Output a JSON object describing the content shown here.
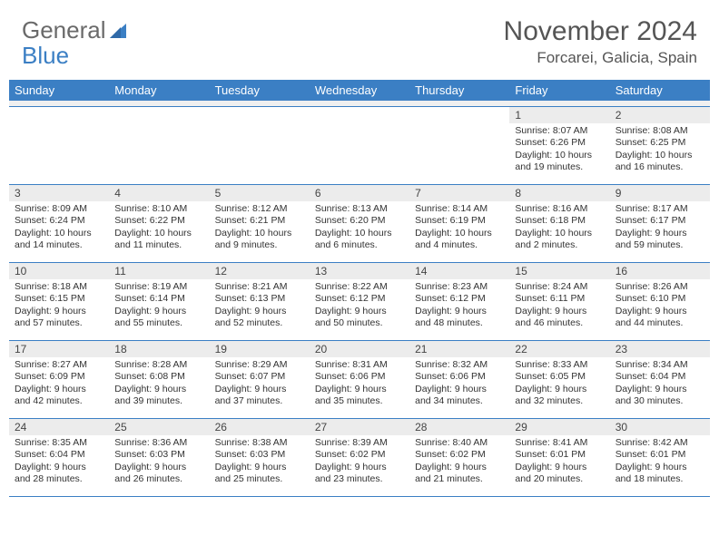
{
  "brand": {
    "word1": "General",
    "word2": "Blue"
  },
  "title": "November 2024",
  "location": "Forcarei, Galicia, Spain",
  "colors": {
    "header_bg": "#3b7fc4",
    "header_text": "#ffffff",
    "daynum_bg": "#ececec",
    "border": "#3b7fc4",
    "title_color": "#555555",
    "body_text": "#333333",
    "logo_gray": "#6a6a6a",
    "logo_blue": "#3b7fc4"
  },
  "day_headers": [
    "Sunday",
    "Monday",
    "Tuesday",
    "Wednesday",
    "Thursday",
    "Friday",
    "Saturday"
  ],
  "weeks": [
    [
      {
        "n": "",
        "sr": "",
        "ss": "",
        "dl": ""
      },
      {
        "n": "",
        "sr": "",
        "ss": "",
        "dl": ""
      },
      {
        "n": "",
        "sr": "",
        "ss": "",
        "dl": ""
      },
      {
        "n": "",
        "sr": "",
        "ss": "",
        "dl": ""
      },
      {
        "n": "",
        "sr": "",
        "ss": "",
        "dl": ""
      },
      {
        "n": "1",
        "sr": "Sunrise: 8:07 AM",
        "ss": "Sunset: 6:26 PM",
        "dl": "Daylight: 10 hours and 19 minutes."
      },
      {
        "n": "2",
        "sr": "Sunrise: 8:08 AM",
        "ss": "Sunset: 6:25 PM",
        "dl": "Daylight: 10 hours and 16 minutes."
      }
    ],
    [
      {
        "n": "3",
        "sr": "Sunrise: 8:09 AM",
        "ss": "Sunset: 6:24 PM",
        "dl": "Daylight: 10 hours and 14 minutes."
      },
      {
        "n": "4",
        "sr": "Sunrise: 8:10 AM",
        "ss": "Sunset: 6:22 PM",
        "dl": "Daylight: 10 hours and 11 minutes."
      },
      {
        "n": "5",
        "sr": "Sunrise: 8:12 AM",
        "ss": "Sunset: 6:21 PM",
        "dl": "Daylight: 10 hours and 9 minutes."
      },
      {
        "n": "6",
        "sr": "Sunrise: 8:13 AM",
        "ss": "Sunset: 6:20 PM",
        "dl": "Daylight: 10 hours and 6 minutes."
      },
      {
        "n": "7",
        "sr": "Sunrise: 8:14 AM",
        "ss": "Sunset: 6:19 PM",
        "dl": "Daylight: 10 hours and 4 minutes."
      },
      {
        "n": "8",
        "sr": "Sunrise: 8:16 AM",
        "ss": "Sunset: 6:18 PM",
        "dl": "Daylight: 10 hours and 2 minutes."
      },
      {
        "n": "9",
        "sr": "Sunrise: 8:17 AM",
        "ss": "Sunset: 6:17 PM",
        "dl": "Daylight: 9 hours and 59 minutes."
      }
    ],
    [
      {
        "n": "10",
        "sr": "Sunrise: 8:18 AM",
        "ss": "Sunset: 6:15 PM",
        "dl": "Daylight: 9 hours and 57 minutes."
      },
      {
        "n": "11",
        "sr": "Sunrise: 8:19 AM",
        "ss": "Sunset: 6:14 PM",
        "dl": "Daylight: 9 hours and 55 minutes."
      },
      {
        "n": "12",
        "sr": "Sunrise: 8:21 AM",
        "ss": "Sunset: 6:13 PM",
        "dl": "Daylight: 9 hours and 52 minutes."
      },
      {
        "n": "13",
        "sr": "Sunrise: 8:22 AM",
        "ss": "Sunset: 6:12 PM",
        "dl": "Daylight: 9 hours and 50 minutes."
      },
      {
        "n": "14",
        "sr": "Sunrise: 8:23 AM",
        "ss": "Sunset: 6:12 PM",
        "dl": "Daylight: 9 hours and 48 minutes."
      },
      {
        "n": "15",
        "sr": "Sunrise: 8:24 AM",
        "ss": "Sunset: 6:11 PM",
        "dl": "Daylight: 9 hours and 46 minutes."
      },
      {
        "n": "16",
        "sr": "Sunrise: 8:26 AM",
        "ss": "Sunset: 6:10 PM",
        "dl": "Daylight: 9 hours and 44 minutes."
      }
    ],
    [
      {
        "n": "17",
        "sr": "Sunrise: 8:27 AM",
        "ss": "Sunset: 6:09 PM",
        "dl": "Daylight: 9 hours and 42 minutes."
      },
      {
        "n": "18",
        "sr": "Sunrise: 8:28 AM",
        "ss": "Sunset: 6:08 PM",
        "dl": "Daylight: 9 hours and 39 minutes."
      },
      {
        "n": "19",
        "sr": "Sunrise: 8:29 AM",
        "ss": "Sunset: 6:07 PM",
        "dl": "Daylight: 9 hours and 37 minutes."
      },
      {
        "n": "20",
        "sr": "Sunrise: 8:31 AM",
        "ss": "Sunset: 6:06 PM",
        "dl": "Daylight: 9 hours and 35 minutes."
      },
      {
        "n": "21",
        "sr": "Sunrise: 8:32 AM",
        "ss": "Sunset: 6:06 PM",
        "dl": "Daylight: 9 hours and 34 minutes."
      },
      {
        "n": "22",
        "sr": "Sunrise: 8:33 AM",
        "ss": "Sunset: 6:05 PM",
        "dl": "Daylight: 9 hours and 32 minutes."
      },
      {
        "n": "23",
        "sr": "Sunrise: 8:34 AM",
        "ss": "Sunset: 6:04 PM",
        "dl": "Daylight: 9 hours and 30 minutes."
      }
    ],
    [
      {
        "n": "24",
        "sr": "Sunrise: 8:35 AM",
        "ss": "Sunset: 6:04 PM",
        "dl": "Daylight: 9 hours and 28 minutes."
      },
      {
        "n": "25",
        "sr": "Sunrise: 8:36 AM",
        "ss": "Sunset: 6:03 PM",
        "dl": "Daylight: 9 hours and 26 minutes."
      },
      {
        "n": "26",
        "sr": "Sunrise: 8:38 AM",
        "ss": "Sunset: 6:03 PM",
        "dl": "Daylight: 9 hours and 25 minutes."
      },
      {
        "n": "27",
        "sr": "Sunrise: 8:39 AM",
        "ss": "Sunset: 6:02 PM",
        "dl": "Daylight: 9 hours and 23 minutes."
      },
      {
        "n": "28",
        "sr": "Sunrise: 8:40 AM",
        "ss": "Sunset: 6:02 PM",
        "dl": "Daylight: 9 hours and 21 minutes."
      },
      {
        "n": "29",
        "sr": "Sunrise: 8:41 AM",
        "ss": "Sunset: 6:01 PM",
        "dl": "Daylight: 9 hours and 20 minutes."
      },
      {
        "n": "30",
        "sr": "Sunrise: 8:42 AM",
        "ss": "Sunset: 6:01 PM",
        "dl": "Daylight: 9 hours and 18 minutes."
      }
    ]
  ]
}
